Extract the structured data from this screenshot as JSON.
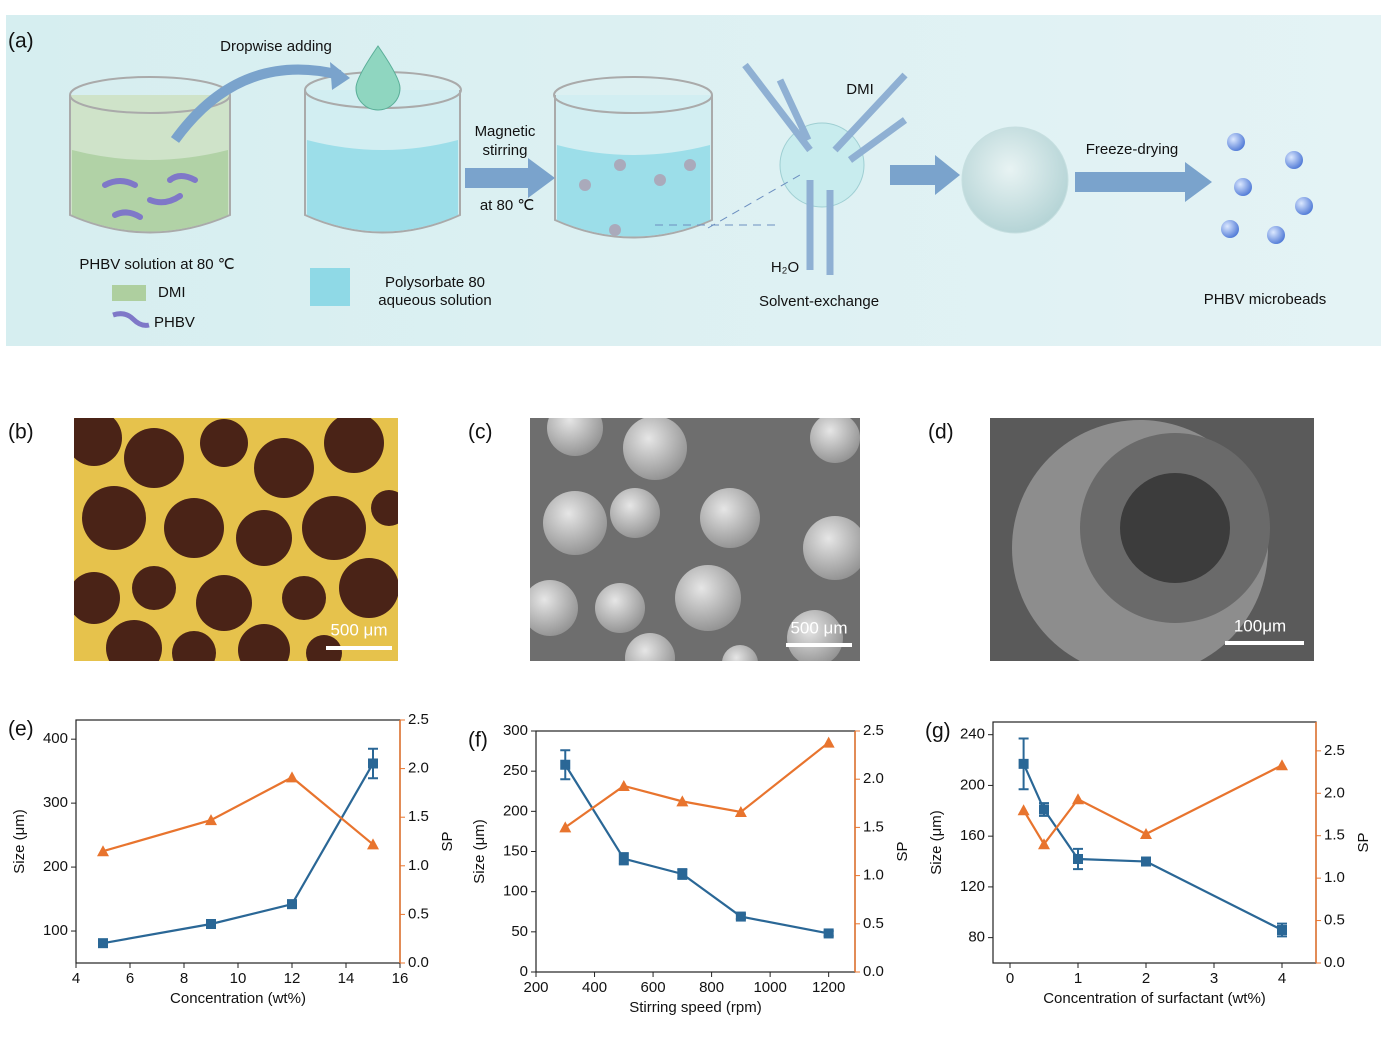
{
  "figure": {
    "panel_a": {
      "label": "(a)",
      "dropwise": "Dropwise adding",
      "magnetic": "Magnetic",
      "stirring": "stirring",
      "temp": "at 80 ℃",
      "phbv_solution": "PHBV solution at 80 ℃",
      "legend_dmi": "DMI",
      "legend_phbv": "PHBV",
      "polysorbate_1": "Polysorbate 80",
      "polysorbate_2": "aqueous solution",
      "dmi": "DMI",
      "h2o": "H₂O",
      "solvent_exchange": "Solvent-exchange",
      "freeze_drying": "Freeze-drying",
      "microbeads": "PHBV microbeads"
    },
    "panel_b": {
      "label": "(b)",
      "scale_bar": "500 μm"
    },
    "panel_c": {
      "label": "(c)",
      "scale_bar": "500 μm"
    },
    "panel_d": {
      "label": "(d)",
      "scale_bar": "100μm"
    }
  },
  "chart_data": [
    {
      "type": "line",
      "panel_label": "(e)",
      "x_label": "Concentration (wt%)",
      "y_label": "Size (μm)",
      "y2_label": "SP",
      "x": [
        5,
        9,
        12,
        15
      ],
      "xlim": [
        4,
        16
      ],
      "xticks": [
        4,
        6,
        8,
        10,
        12,
        14,
        16
      ],
      "ylim": [
        50,
        430
      ],
      "yticks": [
        100,
        200,
        300,
        400
      ],
      "y2lim": [
        0,
        2.5
      ],
      "y2ticks": [
        {
          "value": 0,
          "label": "0.0"
        },
        0.5,
        {
          "value": 1,
          "label": "1.0"
        },
        1.5,
        {
          "value": 2,
          "label": "2.0"
        },
        2.5
      ],
      "series": [
        {
          "color": "#2a6796",
          "marker": "square",
          "values": [
            81,
            111,
            142,
            362
          ],
          "errors": [
            4,
            4,
            6,
            23
          ]
        },
        {
          "color": "#e8742e",
          "marker": "triangle",
          "axis": "y2",
          "values": [
            1.15,
            1.47,
            1.91,
            1.22
          ]
        }
      ]
    },
    {
      "type": "line",
      "panel_label": "(f)",
      "x_label": "Stirring speed (rpm)",
      "y_label": "Size (μm)",
      "y2_label": "SP",
      "x": [
        300,
        500,
        700,
        900,
        1200
      ],
      "xlim": [
        200,
        1290
      ],
      "xticks": [
        200,
        400,
        600,
        800,
        1000,
        1200
      ],
      "ylim": [
        0,
        300
      ],
      "yticks": [
        0,
        50,
        100,
        150,
        200,
        250,
        300
      ],
      "y2lim": [
        0,
        2.5
      ],
      "y2ticks": [
        {
          "value": 0,
          "label": "0.0"
        },
        0.5,
        {
          "value": 1,
          "label": "1.0"
        },
        1.5,
        {
          "value": 2,
          "label": "2.0"
        },
        2.5
      ],
      "series": [
        {
          "color": "#2a6796",
          "marker": "square",
          "values": [
            258,
            141,
            122,
            69,
            48
          ],
          "errors": [
            18,
            7,
            6,
            3,
            3
          ]
        },
        {
          "color": "#e8742e",
          "marker": "triangle",
          "axis": "y2",
          "values": [
            1.5,
            1.93,
            1.77,
            1.66,
            2.38
          ]
        }
      ]
    },
    {
      "type": "line",
      "panel_label": "(g)",
      "x_label": "Concentration of surfactant (wt%)",
      "y_label": "Size (μm)",
      "y2_label": "SP",
      "x": [
        0.2,
        0.5,
        1,
        2,
        4
      ],
      "xlim": [
        -0.25,
        4.5
      ],
      "xticks": [
        0,
        1,
        2,
        3,
        4
      ],
      "ylim": [
        60,
        250
      ],
      "yticks": [
        80,
        120,
        160,
        200,
        240
      ],
      "y2lim": [
        0,
        2.84
      ],
      "y2ticks": [
        {
          "value": 0,
          "label": "0.0"
        },
        0.5,
        {
          "value": 1,
          "label": "1.0"
        },
        1.5,
        {
          "value": 2,
          "label": "2.0"
        },
        2.5
      ],
      "series": [
        {
          "color": "#2a6796",
          "marker": "square",
          "values": [
            217,
            181,
            142,
            140,
            86
          ],
          "errors": [
            20,
            5,
            8,
            3,
            5
          ]
        },
        {
          "color": "#e8742e",
          "marker": "triangle",
          "axis": "y2",
          "values": [
            1.8,
            1.4,
            1.93,
            1.52,
            2.33
          ]
        }
      ]
    }
  ]
}
